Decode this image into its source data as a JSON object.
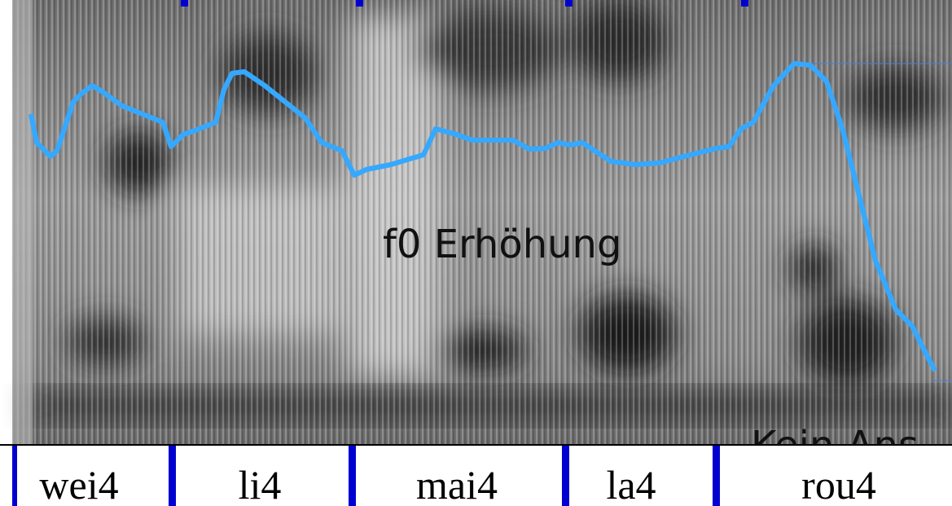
{
  "annotations": {
    "f0": "f0 Erhöhung",
    "onset": "Kein Ans"
  },
  "tier": {
    "syllables": [
      "wei4",
      "li4",
      "mai4",
      "la4",
      "rou4"
    ]
  }
}
